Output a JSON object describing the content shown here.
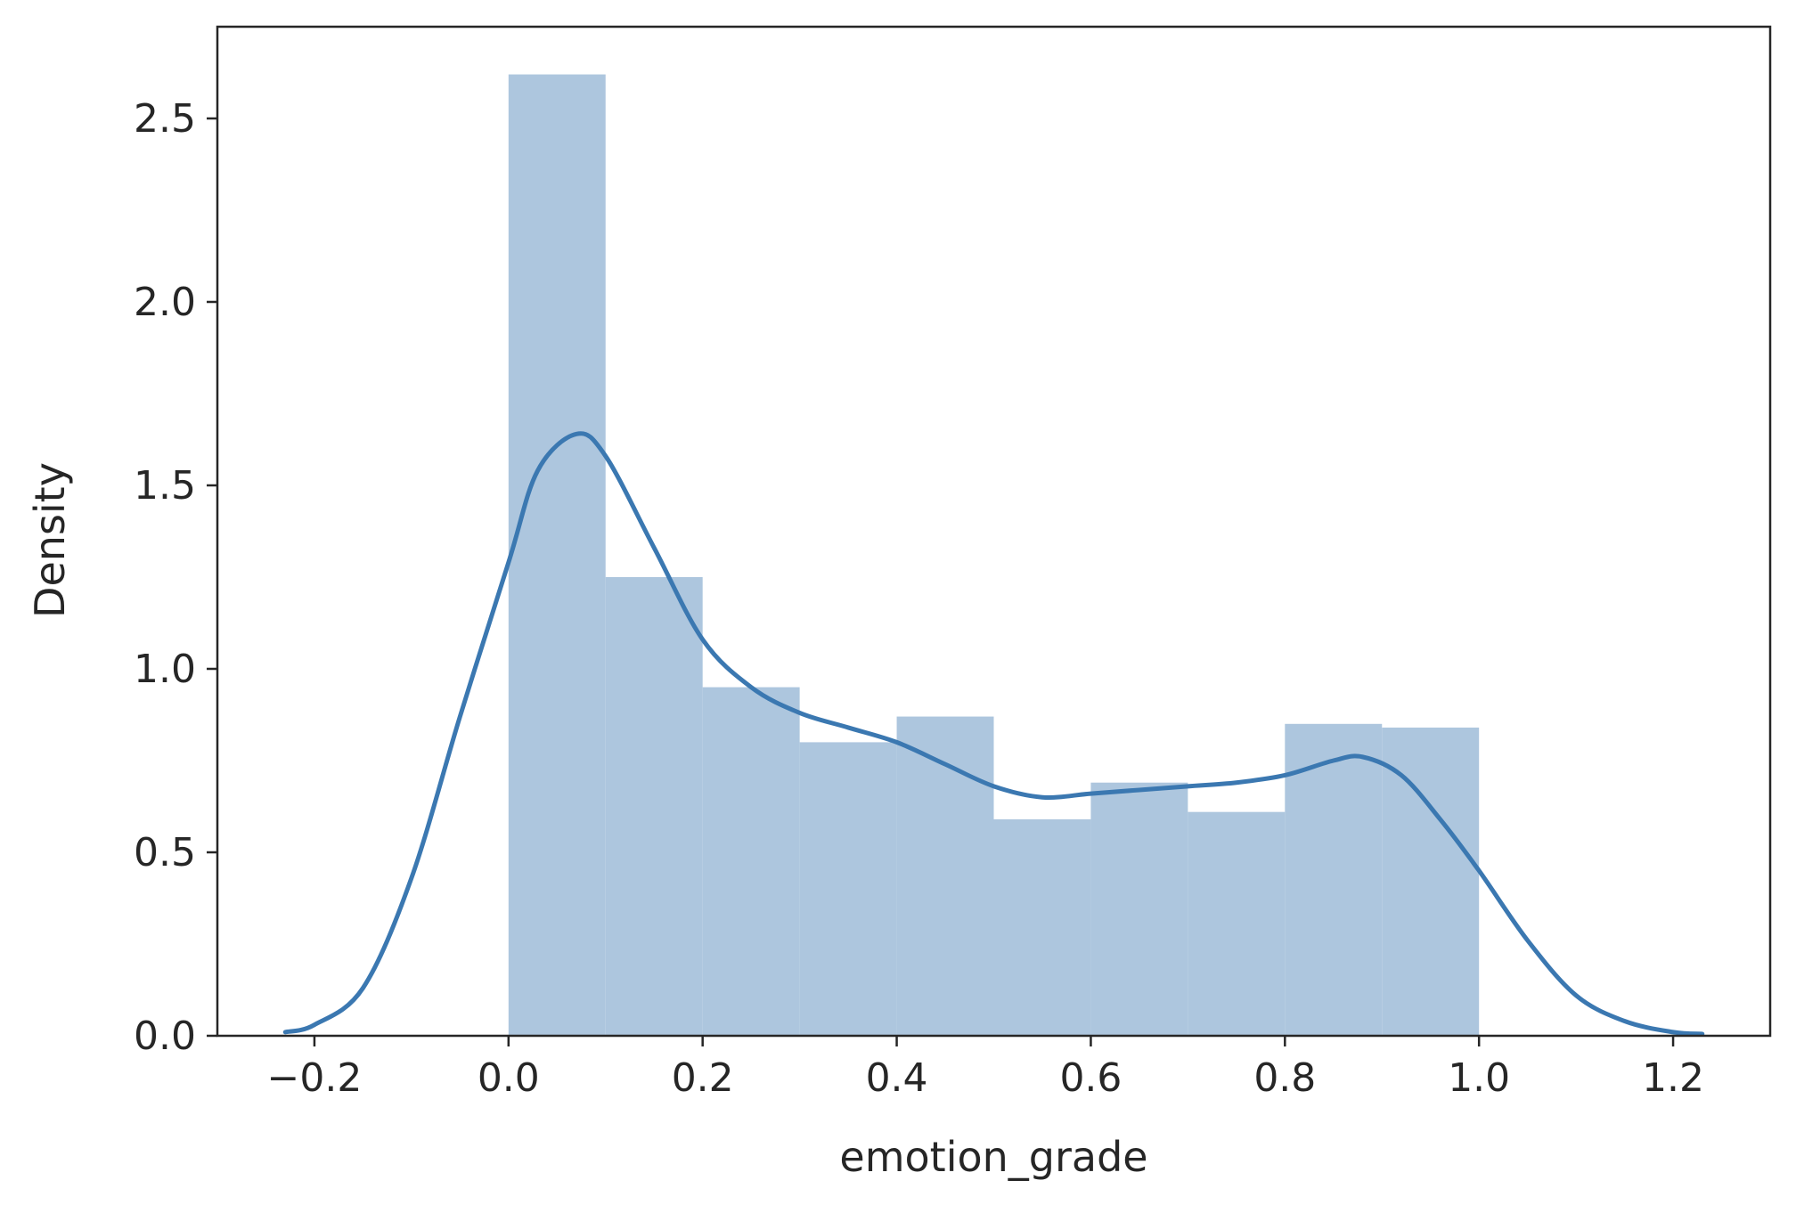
{
  "chart_data": {
    "type": "bar",
    "title": "",
    "xlabel": "emotion_grade",
    "ylabel": "Density",
    "xlim": [
      -0.3,
      1.3
    ],
    "ylim": [
      0,
      2.75
    ],
    "x_ticks": [
      -0.2,
      0.0,
      0.2,
      0.4,
      0.6,
      0.8,
      1.0,
      1.2
    ],
    "x_tick_labels": [
      "−0.2",
      "0.0",
      "0.2",
      "0.4",
      "0.6",
      "0.8",
      "1.0",
      "1.2"
    ],
    "y_ticks": [
      0.0,
      0.5,
      1.0,
      1.5,
      2.0,
      2.5
    ],
    "y_tick_labels": [
      "0.0",
      "0.5",
      "1.0",
      "1.5",
      "2.0",
      "2.5"
    ],
    "grid": false,
    "legend": "none",
    "colors": {
      "bars": "#adc6de",
      "kde": "#3b78b1",
      "axes": "#262626"
    },
    "histogram": {
      "bin_edges": [
        0.0,
        0.1,
        0.2,
        0.3,
        0.4,
        0.5,
        0.6,
        0.7,
        0.8,
        0.9,
        1.0
      ],
      "density": [
        2.62,
        1.25,
        0.95,
        0.8,
        0.87,
        0.59,
        0.69,
        0.61,
        0.85,
        0.84
      ]
    },
    "kde": {
      "x": [
        -0.23,
        -0.2,
        -0.15,
        -0.1,
        -0.05,
        0.0,
        0.03,
        0.07,
        0.1,
        0.15,
        0.2,
        0.25,
        0.3,
        0.35,
        0.4,
        0.45,
        0.5,
        0.55,
        0.6,
        0.65,
        0.7,
        0.75,
        0.8,
        0.85,
        0.88,
        0.92,
        0.96,
        1.0,
        1.05,
        1.1,
        1.15,
        1.2,
        1.23
      ],
      "y": [
        0.01,
        0.03,
        0.13,
        0.43,
        0.87,
        1.29,
        1.54,
        1.64,
        1.58,
        1.33,
        1.08,
        0.95,
        0.88,
        0.84,
        0.8,
        0.74,
        0.68,
        0.65,
        0.66,
        0.67,
        0.68,
        0.69,
        0.71,
        0.75,
        0.76,
        0.71,
        0.59,
        0.45,
        0.26,
        0.11,
        0.04,
        0.01,
        0.005
      ]
    }
  }
}
